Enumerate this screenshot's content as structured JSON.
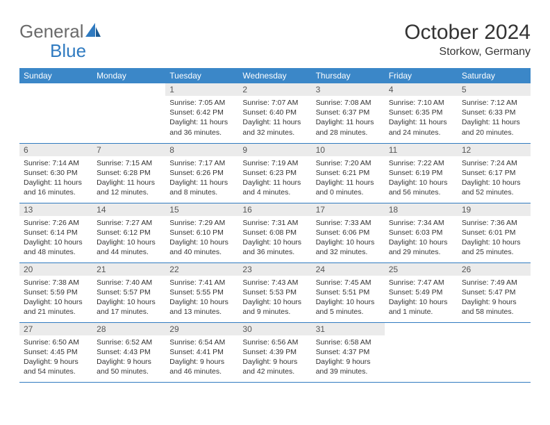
{
  "logo": {
    "text1": "General",
    "text2": "Blue"
  },
  "title": "October 2024",
  "subtitle": "Storkow, Germany",
  "colors": {
    "header_bg": "#3b87c8",
    "header_text": "#ffffff",
    "daynum_bg": "#ebebeb",
    "border": "#2f7ac0",
    "logo_gray": "#6a6a6a",
    "logo_blue": "#2f7ac0",
    "text": "#333333",
    "background": "#ffffff"
  },
  "typography": {
    "title_fontsize": 30,
    "subtitle_fontsize": 16,
    "header_fontsize": 12,
    "daynum_fontsize": 12,
    "body_fontsize": 10.5
  },
  "weekdays": [
    "Sunday",
    "Monday",
    "Tuesday",
    "Wednesday",
    "Thursday",
    "Friday",
    "Saturday"
  ],
  "weeks": [
    [
      {
        "empty": true
      },
      {
        "empty": true
      },
      {
        "day": "1",
        "sunrise": "Sunrise: 7:05 AM",
        "sunset": "Sunset: 6:42 PM",
        "daylight": "Daylight: 11 hours and 36 minutes."
      },
      {
        "day": "2",
        "sunrise": "Sunrise: 7:07 AM",
        "sunset": "Sunset: 6:40 PM",
        "daylight": "Daylight: 11 hours and 32 minutes."
      },
      {
        "day": "3",
        "sunrise": "Sunrise: 7:08 AM",
        "sunset": "Sunset: 6:37 PM",
        "daylight": "Daylight: 11 hours and 28 minutes."
      },
      {
        "day": "4",
        "sunrise": "Sunrise: 7:10 AM",
        "sunset": "Sunset: 6:35 PM",
        "daylight": "Daylight: 11 hours and 24 minutes."
      },
      {
        "day": "5",
        "sunrise": "Sunrise: 7:12 AM",
        "sunset": "Sunset: 6:33 PM",
        "daylight": "Daylight: 11 hours and 20 minutes."
      }
    ],
    [
      {
        "day": "6",
        "sunrise": "Sunrise: 7:14 AM",
        "sunset": "Sunset: 6:30 PM",
        "daylight": "Daylight: 11 hours and 16 minutes."
      },
      {
        "day": "7",
        "sunrise": "Sunrise: 7:15 AM",
        "sunset": "Sunset: 6:28 PM",
        "daylight": "Daylight: 11 hours and 12 minutes."
      },
      {
        "day": "8",
        "sunrise": "Sunrise: 7:17 AM",
        "sunset": "Sunset: 6:26 PM",
        "daylight": "Daylight: 11 hours and 8 minutes."
      },
      {
        "day": "9",
        "sunrise": "Sunrise: 7:19 AM",
        "sunset": "Sunset: 6:23 PM",
        "daylight": "Daylight: 11 hours and 4 minutes."
      },
      {
        "day": "10",
        "sunrise": "Sunrise: 7:20 AM",
        "sunset": "Sunset: 6:21 PM",
        "daylight": "Daylight: 11 hours and 0 minutes."
      },
      {
        "day": "11",
        "sunrise": "Sunrise: 7:22 AM",
        "sunset": "Sunset: 6:19 PM",
        "daylight": "Daylight: 10 hours and 56 minutes."
      },
      {
        "day": "12",
        "sunrise": "Sunrise: 7:24 AM",
        "sunset": "Sunset: 6:17 PM",
        "daylight": "Daylight: 10 hours and 52 minutes."
      }
    ],
    [
      {
        "day": "13",
        "sunrise": "Sunrise: 7:26 AM",
        "sunset": "Sunset: 6:14 PM",
        "daylight": "Daylight: 10 hours and 48 minutes."
      },
      {
        "day": "14",
        "sunrise": "Sunrise: 7:27 AM",
        "sunset": "Sunset: 6:12 PM",
        "daylight": "Daylight: 10 hours and 44 minutes."
      },
      {
        "day": "15",
        "sunrise": "Sunrise: 7:29 AM",
        "sunset": "Sunset: 6:10 PM",
        "daylight": "Daylight: 10 hours and 40 minutes."
      },
      {
        "day": "16",
        "sunrise": "Sunrise: 7:31 AM",
        "sunset": "Sunset: 6:08 PM",
        "daylight": "Daylight: 10 hours and 36 minutes."
      },
      {
        "day": "17",
        "sunrise": "Sunrise: 7:33 AM",
        "sunset": "Sunset: 6:06 PM",
        "daylight": "Daylight: 10 hours and 32 minutes."
      },
      {
        "day": "18",
        "sunrise": "Sunrise: 7:34 AM",
        "sunset": "Sunset: 6:03 PM",
        "daylight": "Daylight: 10 hours and 29 minutes."
      },
      {
        "day": "19",
        "sunrise": "Sunrise: 7:36 AM",
        "sunset": "Sunset: 6:01 PM",
        "daylight": "Daylight: 10 hours and 25 minutes."
      }
    ],
    [
      {
        "day": "20",
        "sunrise": "Sunrise: 7:38 AM",
        "sunset": "Sunset: 5:59 PM",
        "daylight": "Daylight: 10 hours and 21 minutes."
      },
      {
        "day": "21",
        "sunrise": "Sunrise: 7:40 AM",
        "sunset": "Sunset: 5:57 PM",
        "daylight": "Daylight: 10 hours and 17 minutes."
      },
      {
        "day": "22",
        "sunrise": "Sunrise: 7:41 AM",
        "sunset": "Sunset: 5:55 PM",
        "daylight": "Daylight: 10 hours and 13 minutes."
      },
      {
        "day": "23",
        "sunrise": "Sunrise: 7:43 AM",
        "sunset": "Sunset: 5:53 PM",
        "daylight": "Daylight: 10 hours and 9 minutes."
      },
      {
        "day": "24",
        "sunrise": "Sunrise: 7:45 AM",
        "sunset": "Sunset: 5:51 PM",
        "daylight": "Daylight: 10 hours and 5 minutes."
      },
      {
        "day": "25",
        "sunrise": "Sunrise: 7:47 AM",
        "sunset": "Sunset: 5:49 PM",
        "daylight": "Daylight: 10 hours and 1 minute."
      },
      {
        "day": "26",
        "sunrise": "Sunrise: 7:49 AM",
        "sunset": "Sunset: 5:47 PM",
        "daylight": "Daylight: 9 hours and 58 minutes."
      }
    ],
    [
      {
        "day": "27",
        "sunrise": "Sunrise: 6:50 AM",
        "sunset": "Sunset: 4:45 PM",
        "daylight": "Daylight: 9 hours and 54 minutes."
      },
      {
        "day": "28",
        "sunrise": "Sunrise: 6:52 AM",
        "sunset": "Sunset: 4:43 PM",
        "daylight": "Daylight: 9 hours and 50 minutes."
      },
      {
        "day": "29",
        "sunrise": "Sunrise: 6:54 AM",
        "sunset": "Sunset: 4:41 PM",
        "daylight": "Daylight: 9 hours and 46 minutes."
      },
      {
        "day": "30",
        "sunrise": "Sunrise: 6:56 AM",
        "sunset": "Sunset: 4:39 PM",
        "daylight": "Daylight: 9 hours and 42 minutes."
      },
      {
        "day": "31",
        "sunrise": "Sunrise: 6:58 AM",
        "sunset": "Sunset: 4:37 PM",
        "daylight": "Daylight: 9 hours and 39 minutes."
      },
      {
        "empty": true
      },
      {
        "empty": true
      }
    ]
  ]
}
